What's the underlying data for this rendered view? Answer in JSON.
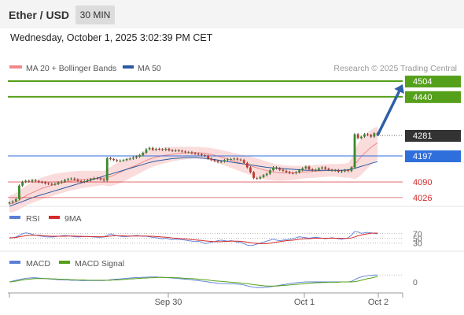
{
  "header": {
    "title": "Ether / USD",
    "timeframe": "30 MIN"
  },
  "datetime": "Wednesday, October 1, 2025 3:02:39 PM CET",
  "legend": {
    "ma20_label": "MA 20 + Bollinger Bands",
    "ma50_label": "MA 50",
    "credit": "Research © 2025 Trading Central"
  },
  "chart_data": {
    "type": "candlestick",
    "symbol": "Ether / USD",
    "interval": "30 MIN",
    "x_ticks": [
      "Sep 30",
      "Oct 1",
      "Oct 2"
    ],
    "price_levels": [
      {
        "value": 4504,
        "label": "4504",
        "kind": "target",
        "color": "#55a01a"
      },
      {
        "value": 4440,
        "label": "4440",
        "kind": "target",
        "color": "#55a01a"
      },
      {
        "value": 4281,
        "label": "4281",
        "kind": "current",
        "color": "#333333"
      },
      {
        "value": 4197,
        "label": "4197",
        "kind": "pivot",
        "color": "#2f6fdc"
      },
      {
        "value": 4090,
        "label": "4090",
        "kind": "support",
        "color": "#d42a2a"
      },
      {
        "value": 4026,
        "label": "4026",
        "kind": "support",
        "color": "#d42a2a"
      }
    ],
    "price_series": [
      4006,
      4010,
      4020,
      4075,
      4090,
      4095,
      4092,
      4098,
      4094,
      4090,
      4088,
      4084,
      4082,
      4080,
      4082,
      4088,
      4092,
      4098,
      4102,
      4104,
      4100,
      4094,
      4090,
      4094,
      4097,
      4102,
      4106,
      4104,
      4100,
      4096,
      4188,
      4184,
      4180,
      4176,
      4178,
      4180,
      4184,
      4186,
      4190,
      4194,
      4200,
      4210,
      4224,
      4230,
      4222,
      4226,
      4224,
      4222,
      4226,
      4220,
      4218,
      4220,
      4218,
      4215,
      4212,
      4212,
      4208,
      4206,
      4204,
      4200,
      4198,
      4186,
      4180,
      4176,
      4172,
      4174,
      4180,
      4183,
      4184,
      4186,
      4182,
      4180,
      4168,
      4150,
      4130,
      4106,
      4104,
      4110,
      4118,
      4124,
      4138,
      4150,
      4146,
      4140,
      4136,
      4131,
      4127,
      4126,
      4130,
      4138,
      4146,
      4153,
      4142,
      4138,
      4140,
      4146,
      4150,
      4144,
      4140,
      4137,
      4138,
      4132,
      4134,
      4138,
      4135,
      4150,
      4286,
      4270,
      4276,
      4286,
      4283,
      4276,
      4290,
      4283
    ],
    "projection": {
      "from": 4281,
      "to": 4504
    },
    "ma20": [
      4000,
      4002,
      4008,
      4015,
      4025,
      4033,
      4040,
      4046,
      4052,
      4058,
      4064,
      4068,
      4072,
      4076,
      4080,
      4083,
      4086,
      4089,
      4092,
      4094,
      4096,
      4098,
      4100,
      4101,
      4102,
      4103,
      4104,
      4105,
      4106,
      4106,
      4108,
      4112,
      4118,
      4124,
      4130,
      4136,
      4142,
      4148,
      4154,
      4160,
      4166,
      4172,
      4178,
      4184,
      4188,
      4192,
      4195,
      4198,
      4200,
      4202,
      4204,
      4206,
      4207,
      4208,
      4209,
      4210,
      4210,
      4210,
      4210,
      4209,
      4208,
      4206,
      4203,
      4200,
      4196,
      4192,
      4188,
      4184,
      4180,
      4176,
      4172,
      4168,
      4164,
      4160,
      4156,
      4152,
      4148,
      4144,
      4140,
      4137,
      4134,
      4131,
      4129,
      4128,
      4127,
      4127,
      4127,
      4127,
      4128,
      4129,
      4130,
      4131,
      4132,
      4133,
      4134,
      4135,
      4136,
      4137,
      4138,
      4138,
      4138,
      4137,
      4137,
      4137,
      4138,
      4145,
      4162,
      4178,
      4194,
      4208,
      4220,
      4232,
      4242,
      4250
    ],
    "ma50": [
      3990,
      3995,
      4000,
      4005,
      4010,
      4015,
      4020,
      4025,
      4030,
      4034,
      4038,
      4042,
      4046,
      4050,
      4054,
      4058,
      4062,
      4066,
      4070,
      4074,
      4078,
      4082,
      4086,
      4090,
      4094,
      4098,
      4102,
      4106,
      4110,
      4114,
      4118,
      4122,
      4126,
      4130,
      4134,
      4138,
      4142,
      4146,
      4150,
      4154,
      4158,
      4162,
      4166,
      4170,
      4173,
      4176,
      4178,
      4180,
      4182,
      4184,
      4186,
      4187,
      4188,
      4189,
      4190,
      4190,
      4190,
      4190,
      4189,
      4188,
      4187,
      4186,
      4184,
      4182,
      4180,
      4178,
      4176,
      4174,
      4172,
      4170,
      4168,
      4166,
      4164,
      4162,
      4160,
      4158,
      4156,
      4154,
      4152,
      4150,
      4149,
      4148,
      4147,
      4146,
      4145,
      4144,
      4143,
      4142,
      4141,
      4140,
      4139,
      4138,
      4138,
      4138,
      4138,
      4138,
      4138,
      4138,
      4138,
      4138,
      4138,
      4138,
      4138,
      4139,
      4140,
      4142,
      4146,
      4150,
      4154,
      4158,
      4162,
      4166,
      4170,
      4174
    ],
    "bollinger_width": [
      70,
      72,
      74,
      76,
      78,
      80,
      82,
      84,
      86,
      88,
      90,
      90,
      90,
      90,
      88,
      86,
      84,
      82,
      80,
      78,
      76,
      74,
      72,
      70,
      68,
      66,
      64,
      62,
      60,
      58,
      70,
      78,
      84,
      88,
      90,
      90,
      88,
      86,
      84,
      82,
      80,
      78,
      76,
      74,
      72,
      70,
      68,
      66,
      64,
      62,
      60,
      58,
      56,
      54,
      52,
      50,
      48,
      48,
      48,
      48,
      48,
      50,
      52,
      54,
      56,
      58,
      60,
      62,
      64,
      66,
      68,
      70,
      72,
      74,
      76,
      78,
      78,
      78,
      76,
      74,
      72,
      70,
      68,
      66,
      64,
      62,
      60,
      58,
      56,
      54,
      52,
      52,
      52,
      52,
      52,
      52,
      52,
      52,
      52,
      52,
      52,
      54,
      56,
      58,
      60,
      80,
      120,
      140,
      150,
      150,
      148,
      144,
      140,
      136
    ],
    "price_ylim": [
      3990,
      4530
    ],
    "rsi": {
      "label": "RSI",
      "signal_label": "9MA",
      "levels": [
        70,
        50,
        30
      ],
      "ylim": [
        0,
        100
      ],
      "values": [
        50,
        52,
        55,
        62,
        68,
        72,
        70,
        66,
        62,
        60,
        58,
        56,
        55,
        55,
        56,
        58,
        60,
        62,
        60,
        58,
        56,
        55,
        56,
        57,
        58,
        56,
        55,
        54,
        54,
        55,
        62,
        68,
        64,
        60,
        58,
        56,
        57,
        58,
        60,
        62,
        60,
        58,
        58,
        56,
        54,
        52,
        50,
        48,
        50,
        46,
        44,
        46,
        45,
        44,
        42,
        40,
        38,
        36,
        38,
        34,
        28,
        30,
        34,
        36,
        40,
        42,
        40,
        38,
        40,
        38,
        34,
        32,
        28,
        22,
        20,
        22,
        26,
        30,
        34,
        38,
        42,
        46,
        42,
        40,
        42,
        44,
        46,
        48,
        52,
        56,
        54,
        52,
        50,
        52,
        54,
        52,
        50,
        48,
        50,
        52,
        50,
        48,
        46,
        48,
        52,
        62,
        78,
        76,
        70,
        72,
        74,
        72,
        70,
        68
      ],
      "signal": [
        52,
        52,
        53,
        56,
        58,
        60,
        62,
        62,
        62,
        62,
        61,
        60,
        59,
        58,
        58,
        58,
        58,
        58,
        59,
        59,
        59,
        58,
        58,
        57,
        57,
        57,
        57,
        56,
        56,
        56,
        57,
        59,
        60,
        60,
        60,
        60,
        59,
        59,
        59,
        59,
        59,
        59,
        59,
        58,
        58,
        57,
        56,
        55,
        54,
        53,
        51,
        50,
        49,
        48,
        47,
        46,
        44,
        43,
        42,
        41,
        39,
        38,
        37,
        36,
        36,
        36,
        37,
        37,
        38,
        38,
        38,
        37,
        36,
        34,
        32,
        30,
        29,
        28,
        28,
        28,
        30,
        32,
        34,
        36,
        38,
        40,
        41,
        42,
        44,
        46,
        47,
        48,
        48,
        49,
        50,
        50,
        50,
        50,
        50,
        50,
        50,
        50,
        49,
        49,
        49,
        51,
        55,
        60,
        63,
        66,
        68,
        70,
        71,
        71
      ]
    },
    "macd": {
      "label": "MACD",
      "signal_label": "MACD Signal",
      "zero_label": "0",
      "ylim": [
        -40,
        40
      ],
      "values": [
        0,
        3,
        6,
        9,
        11,
        13,
        14,
        15,
        15,
        14,
        13,
        12,
        11,
        10,
        9,
        8,
        8,
        7,
        7,
        6,
        6,
        6,
        5,
        5,
        5,
        5,
        5,
        5,
        5,
        5,
        6,
        8,
        9,
        10,
        11,
        12,
        13,
        14,
        15,
        16,
        16,
        17,
        17,
        18,
        18,
        18,
        17,
        17,
        16,
        15,
        14,
        13,
        12,
        11,
        10,
        9,
        8,
        6,
        5,
        3,
        2,
        0,
        -2,
        -3,
        -5,
        -6,
        -6,
        -7,
        -7,
        -7,
        -8,
        -9,
        -11,
        -14,
        -17,
        -19,
        -20,
        -20,
        -20,
        -19,
        -18,
        -16,
        -14,
        -12,
        -10,
        -8,
        -6,
        -4,
        -3,
        -2,
        -1,
        0,
        0,
        0,
        0,
        0,
        0,
        0,
        0,
        0,
        0,
        0,
        0,
        0,
        0,
        2,
        8,
        14,
        18,
        21,
        23,
        24,
        25,
        25
      ],
      "signal": [
        0,
        1,
        3,
        5,
        7,
        9,
        10,
        11,
        12,
        12,
        12,
        12,
        12,
        11,
        11,
        10,
        10,
        9,
        9,
        8,
        8,
        7,
        7,
        7,
        6,
        6,
        6,
        6,
        6,
        6,
        6,
        6,
        7,
        7,
        8,
        9,
        10,
        11,
        11,
        12,
        13,
        14,
        14,
        15,
        15,
        16,
        16,
        16,
        16,
        16,
        16,
        15,
        15,
        14,
        13,
        12,
        12,
        11,
        10,
        9,
        8,
        7,
        5,
        4,
        3,
        2,
        1,
        0,
        -1,
        -2,
        -3,
        -4,
        -5,
        -6,
        -8,
        -10,
        -11,
        -13,
        -14,
        -15,
        -15,
        -15,
        -15,
        -14,
        -13,
        -12,
        -11,
        -10,
        -9,
        -8,
        -7,
        -6,
        -5,
        -4,
        -3,
        -3,
        -2,
        -2,
        -1,
        -1,
        -1,
        -1,
        0,
        0,
        0,
        0,
        1,
        3,
        6,
        9,
        12,
        14,
        17,
        19
      ]
    }
  }
}
